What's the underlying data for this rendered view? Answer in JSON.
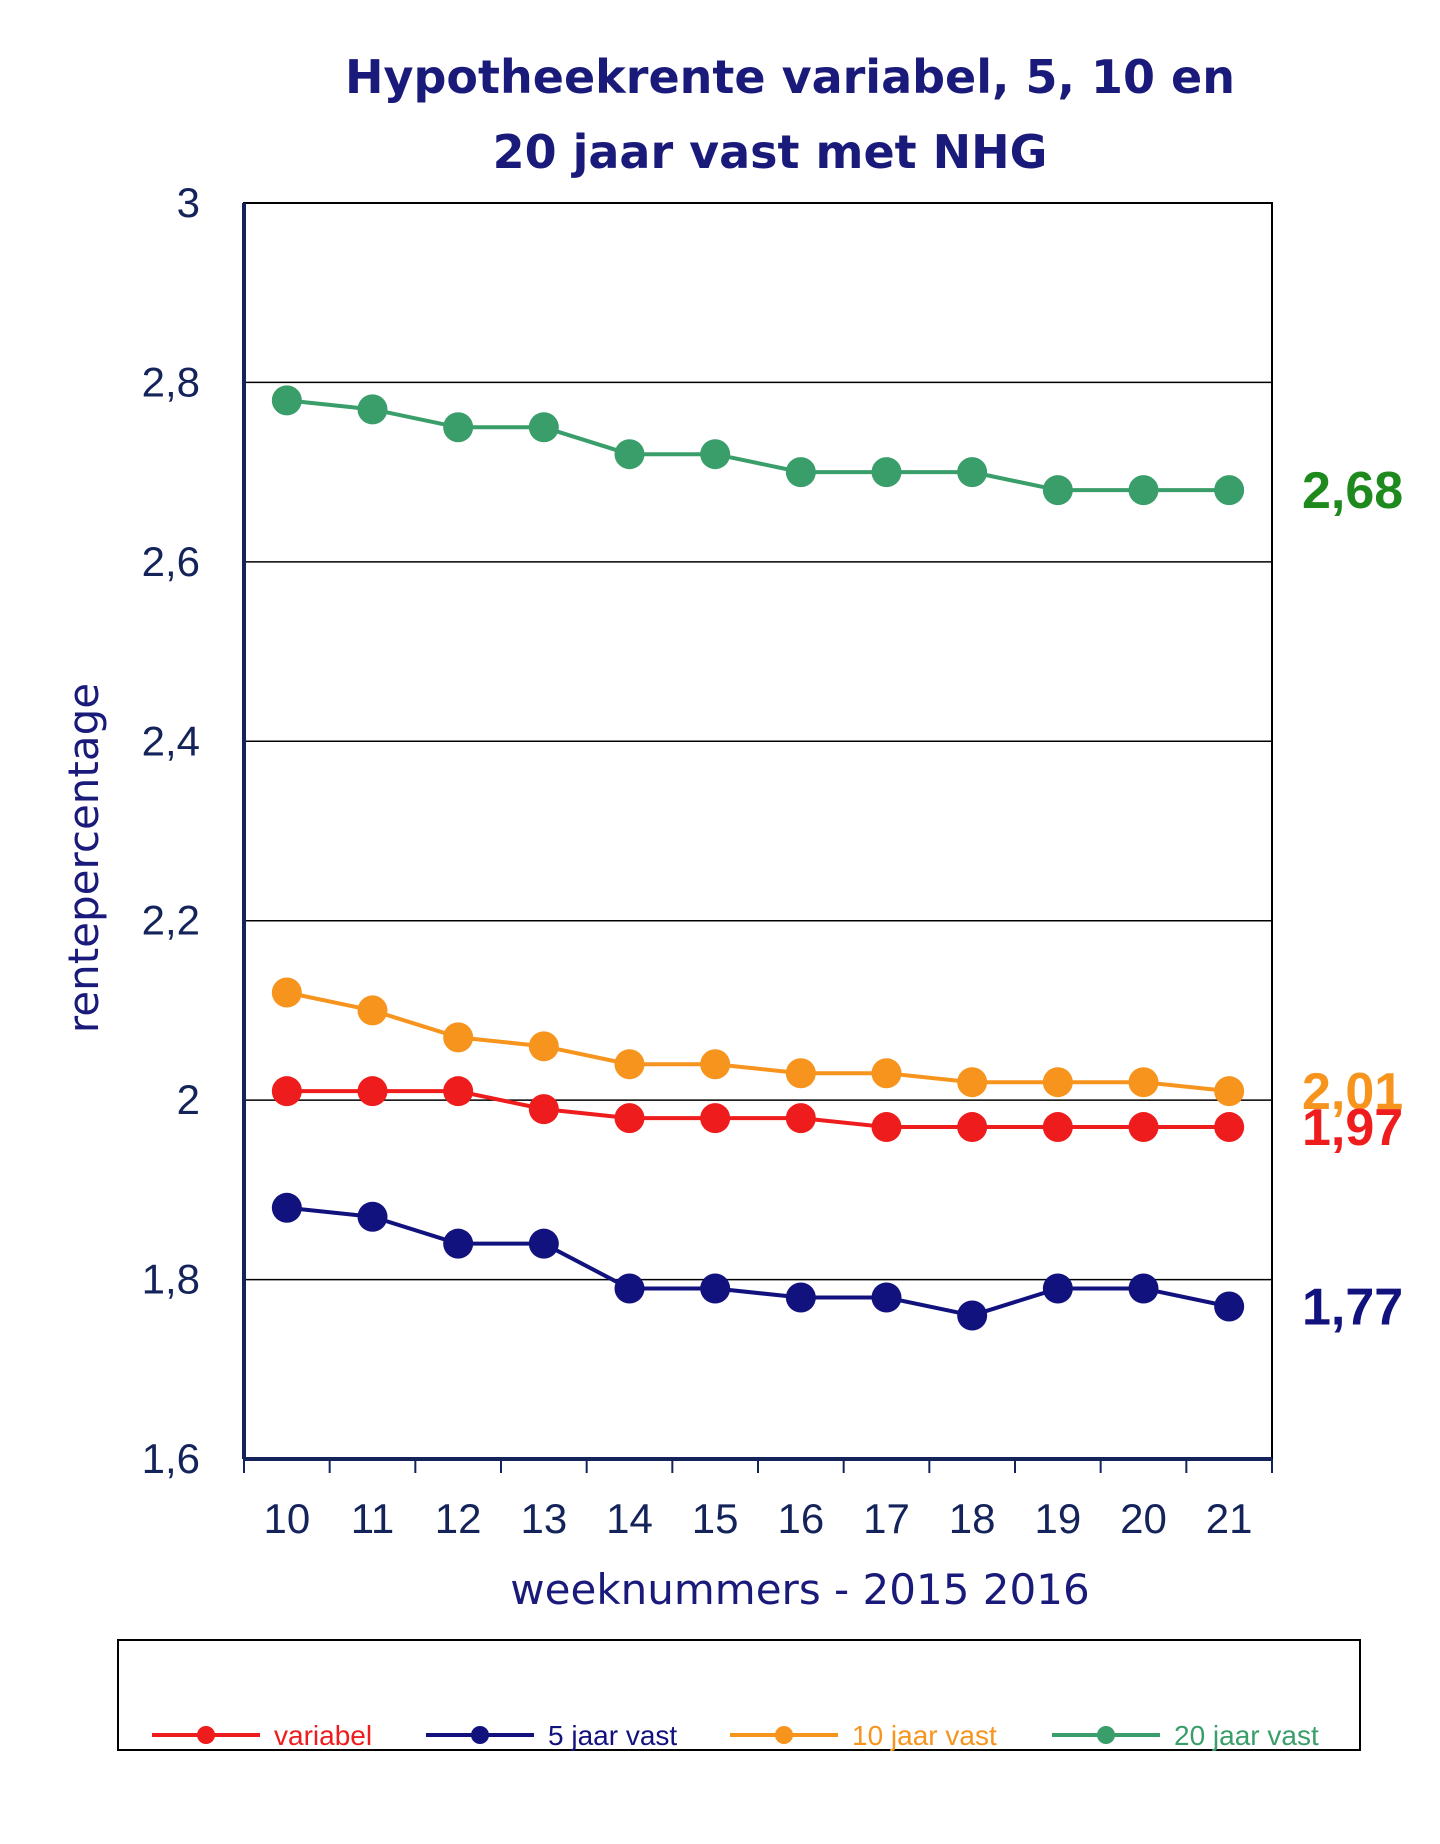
{
  "chart_data": {
    "type": "line",
    "title_lines": [
      "Hypotheekrente variabel, 5, 10 en",
      "20 jaar vast met NHG"
    ],
    "ylabel": "rentepercentage",
    "xlabel": "weeknummers - 2015 2016",
    "ylim": [
      1.6,
      3.0
    ],
    "yticks": [
      1.6,
      1.8,
      2.0,
      2.2,
      2.4,
      2.6,
      2.8,
      3.0
    ],
    "ytick_labels": [
      "1,6",
      "1,8",
      "2",
      "2,2",
      "2,4",
      "2,6",
      "2,8",
      "3"
    ],
    "categories": [
      "10",
      "11",
      "12",
      "13",
      "14",
      "15",
      "16",
      "17",
      "18",
      "19",
      "20",
      "21"
    ],
    "grid": "horizontal",
    "legend_position": "bottom",
    "series": [
      {
        "name": "variabel",
        "color": "#ee1c1c",
        "values": [
          2.01,
          2.01,
          2.01,
          1.99,
          1.98,
          1.98,
          1.98,
          1.97,
          1.97,
          1.97,
          1.97,
          1.97
        ],
        "end_label": "1,97"
      },
      {
        "name": "5 jaar vast",
        "color": "#12127e",
        "values": [
          1.88,
          1.87,
          1.84,
          1.84,
          1.79,
          1.79,
          1.78,
          1.78,
          1.76,
          1.79,
          1.79,
          1.77
        ],
        "end_label": "1,77"
      },
      {
        "name": "10 jaar vast",
        "color": "#f7941d",
        "values": [
          2.12,
          2.1,
          2.07,
          2.06,
          2.04,
          2.04,
          2.03,
          2.03,
          2.02,
          2.02,
          2.02,
          2.01
        ],
        "end_label": "2,01"
      },
      {
        "name": "20 jaar vast",
        "color": "#3a9e6a",
        "values": [
          2.78,
          2.77,
          2.75,
          2.75,
          2.72,
          2.72,
          2.7,
          2.7,
          2.7,
          2.68,
          2.68,
          2.68
        ],
        "end_label": "2,68",
        "end_label_color": "#1e8a1e"
      }
    ]
  }
}
